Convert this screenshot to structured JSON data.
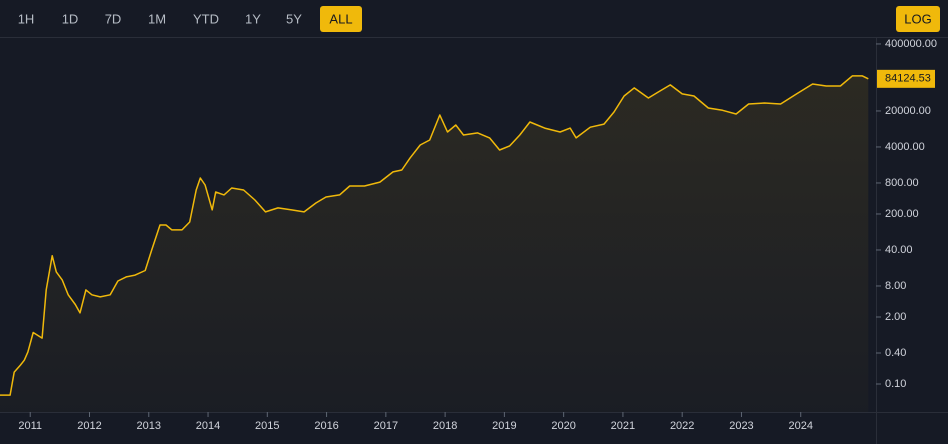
{
  "ranges": [
    "1H",
    "1D",
    "7D",
    "1M",
    "YTD",
    "1Y",
    "5Y",
    "ALL"
  ],
  "active_range_index": 7,
  "scale_button": "LOG",
  "chart_data": {
    "type": "line",
    "log_scale": true,
    "color": "#f0b90b",
    "x": [
      2010.49,
      2010.66,
      2010.73,
      2010.83,
      2010.9,
      2010.96,
      2011.05,
      2011.2,
      2011.27,
      2011.37,
      2011.44,
      2011.54,
      2011.64,
      2011.76,
      2011.84,
      2011.94,
      2012.04,
      2012.18,
      2012.35,
      2012.48,
      2012.62,
      2012.77,
      2012.94,
      2013.05,
      2013.19,
      2013.29,
      2013.39,
      2013.56,
      2013.69,
      2013.8,
      2013.87,
      2013.95,
      2014.07,
      2014.13,
      2014.27,
      2014.4,
      2014.6,
      2014.79,
      2014.97,
      2015.18,
      2015.41,
      2015.62,
      2015.82,
      2015.99,
      2016.22,
      2016.39,
      2016.64,
      2016.9,
      2017.12,
      2017.27,
      2017.41,
      2017.58,
      2017.74,
      2017.91,
      2018.04,
      2018.18,
      2018.31,
      2018.55,
      2018.75,
      2018.92,
      2019.09,
      2019.26,
      2019.43,
      2019.68,
      2019.94,
      2020.11,
      2020.21,
      2020.45,
      2020.68,
      2020.85,
      2021.02,
      2021.19,
      2021.43,
      2021.6,
      2021.8,
      2022.0,
      2022.2,
      2022.44,
      2022.68,
      2022.91,
      2023.12,
      2023.39,
      2023.66,
      2023.93,
      2024.2,
      2024.43,
      2024.67,
      2024.87,
      2025.04,
      2025.14
    ],
    "values": [
      0.061,
      0.061,
      0.17,
      0.23,
      0.29,
      0.42,
      1.0,
      0.78,
      6.7,
      31,
      15,
      10.5,
      5.4,
      3.5,
      2.4,
      6.7,
      5.4,
      4.9,
      5.4,
      10,
      12,
      13,
      16,
      40,
      122,
      122,
      98,
      98,
      140,
      585,
      1000,
      730,
      240,
      535,
      470,
      640,
      585,
      374,
      219,
      263,
      240,
      219,
      327,
      427,
      470,
      700,
      700,
      830,
      1310,
      1430,
      2450,
      4370,
      5470,
      16700,
      7820,
      10700,
      6840,
      7500,
      6000,
      3500,
      4200,
      6840,
      12200,
      9300,
      7800,
      9300,
      6000,
      9700,
      11100,
      19100,
      39000,
      56000,
      35700,
      46800,
      64000,
      42800,
      39000,
      22800,
      20600,
      17500,
      27300,
      28500,
      27300,
      42800,
      66800,
      61100,
      61100,
      95700,
      95700,
      84124.53
    ],
    "xlim": [
      2010.49,
      2025.27
    ],
    "xticks": [
      2011,
      2012,
      2013,
      2014,
      2015,
      2016,
      2017,
      2018,
      2019,
      2020,
      2021,
      2022,
      2023,
      2024
    ],
    "ylim": [
      0.0286,
      522000
    ],
    "yticks": [
      {
        "value": 400000,
        "label": "400000.00"
      },
      {
        "value": 20000,
        "label": "20000.00"
      },
      {
        "value": 4000,
        "label": "4000.00"
      },
      {
        "value": 800,
        "label": "800.00"
      },
      {
        "value": 200,
        "label": "200.00"
      },
      {
        "value": 40,
        "label": "40.00"
      },
      {
        "value": 8,
        "label": "8.00"
      },
      {
        "value": 2,
        "label": "2.00"
      },
      {
        "value": 0.4,
        "label": "0.40"
      },
      {
        "value": 0.1,
        "label": "0.10"
      }
    ]
  }
}
